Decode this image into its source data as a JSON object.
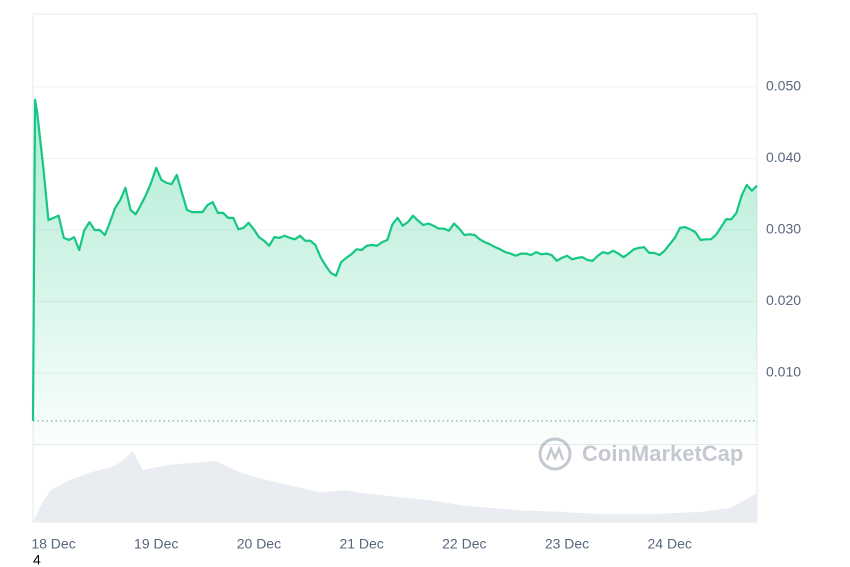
{
  "chart_data": {
    "type": "line",
    "watermark": "CoinMarketCap",
    "footnote": "4",
    "xlim": [
      -0.2,
      6.85
    ],
    "xticks": [
      {
        "value": 0,
        "label": "18 Dec"
      },
      {
        "value": 1,
        "label": "19 Dec"
      },
      {
        "value": 2,
        "label": "20 Dec"
      },
      {
        "value": 3,
        "label": "21 Dec"
      },
      {
        "value": 4,
        "label": "22 Dec"
      },
      {
        "value": 5,
        "label": "23 Dec"
      },
      {
        "value": 6,
        "label": "24 Dec"
      }
    ],
    "ylim": [
      0,
      0.06
    ],
    "yticks": [
      {
        "value": 0.01,
        "label": "0.010"
      },
      {
        "value": 0.02,
        "label": "0.020"
      },
      {
        "value": 0.03,
        "label": "0.030"
      },
      {
        "value": 0.04,
        "label": "0.040"
      },
      {
        "value": 0.05,
        "label": "0.050"
      }
    ],
    "y2lim": [
      0,
      100
    ],
    "grid": true,
    "baseline": 0.0033,
    "series": [
      {
        "color": "#16c784",
        "x": [
          -0.2,
          -0.18,
          -0.16,
          -0.1,
          -0.05,
          0,
          0.05,
          0.1,
          0.15,
          0.2,
          0.25,
          0.3,
          0.35,
          0.4,
          0.45,
          0.5,
          0.55,
          0.6,
          0.65,
          0.7,
          0.75,
          0.8,
          0.85,
          0.9,
          0.95,
          1,
          1.05,
          1.1,
          1.15,
          1.2,
          1.25,
          1.3,
          1.35,
          1.4,
          1.45,
          1.5,
          1.55,
          1.6,
          1.65,
          1.7,
          1.75,
          1.8,
          1.85,
          1.9,
          1.95,
          2,
          2.05,
          2.1,
          2.15,
          2.2,
          2.25,
          2.3,
          2.35,
          2.4,
          2.45,
          2.5,
          2.55,
          2.6,
          2.65,
          2.7,
          2.75,
          2.8,
          2.85,
          2.9,
          2.95,
          3,
          3.05,
          3.1,
          3.15,
          3.2,
          3.25,
          3.3,
          3.35,
          3.4,
          3.45,
          3.5,
          3.55,
          3.6,
          3.65,
          3.7,
          3.75,
          3.8,
          3.85,
          3.9,
          3.95,
          4,
          4.05,
          4.1,
          4.15,
          4.2,
          4.25,
          4.3,
          4.35,
          4.4,
          4.45,
          4.5,
          4.55,
          4.6,
          4.65,
          4.7,
          4.75,
          4.8,
          4.85,
          4.9,
          4.95,
          5,
          5.05,
          5.1,
          5.15,
          5.2,
          5.25,
          5.3,
          5.35,
          5.4,
          5.45,
          5.5,
          5.55,
          5.6,
          5.65,
          5.7,
          5.75,
          5.8,
          5.85,
          5.9,
          5.95,
          6,
          6.05,
          6.1,
          6.15,
          6.2,
          6.25,
          6.3,
          6.35,
          6.4,
          6.45,
          6.5,
          6.55,
          6.6,
          6.65,
          6.7,
          6.75,
          6.8,
          6.85
        ],
        "values": [
          0.0033,
          0.0482,
          0.0465,
          0.0388,
          0.0314,
          0.0317,
          0.032,
          0.0289,
          0.0286,
          0.029,
          0.0272,
          0.03,
          0.0311,
          0.03,
          0.03,
          0.0293,
          0.0311,
          0.0331,
          0.0342,
          0.0359,
          0.0328,
          0.0322,
          0.0335,
          0.0349,
          0.0366,
          0.0387,
          0.037,
          0.0366,
          0.0364,
          0.0377,
          0.0352,
          0.0328,
          0.0325,
          0.0325,
          0.0325,
          0.0335,
          0.0339,
          0.0324,
          0.0324,
          0.0317,
          0.0317,
          0.0301,
          0.0303,
          0.031,
          0.0301,
          0.029,
          0.0285,
          0.0278,
          0.029,
          0.0289,
          0.0292,
          0.0289,
          0.0287,
          0.0292,
          0.0285,
          0.0285,
          0.0279,
          0.0262,
          0.025,
          0.024,
          0.0236,
          0.0255,
          0.0261,
          0.0266,
          0.0273,
          0.0272,
          0.0278,
          0.0279,
          0.0278,
          0.0283,
          0.0286,
          0.0308,
          0.0317,
          0.0306,
          0.0311,
          0.032,
          0.0313,
          0.0307,
          0.0309,
          0.0306,
          0.0302,
          0.0302,
          0.0299,
          0.0309,
          0.0302,
          0.0293,
          0.0294,
          0.0293,
          0.0287,
          0.0283,
          0.028,
          0.0276,
          0.0273,
          0.0269,
          0.0267,
          0.0264,
          0.0267,
          0.0267,
          0.0265,
          0.0269,
          0.0266,
          0.0267,
          0.0265,
          0.0257,
          0.0261,
          0.0264,
          0.0259,
          0.0261,
          0.0262,
          0.0258,
          0.0257,
          0.0264,
          0.0269,
          0.0267,
          0.0271,
          0.0267,
          0.0262,
          0.0267,
          0.0273,
          0.0275,
          0.0276,
          0.0268,
          0.0268,
          0.0265,
          0.0271,
          0.028,
          0.0289,
          0.0303,
          0.0304,
          0.0301,
          0.0297,
          0.0286,
          0.0287,
          0.0287,
          0.0293,
          0.0304,
          0.0315,
          0.0315,
          0.0324,
          0.0348,
          0.0363,
          0.0355,
          0.0362
        ]
      },
      {
        "color": "#e9ecf0",
        "axis": "y2",
        "x": [
          -0.2,
          -0.12,
          -0.03,
          0.16,
          0.36,
          0.55,
          0.65,
          0.73,
          0.77,
          0.81,
          0.87,
          0.94,
          1.14,
          1.33,
          1.58,
          1.67,
          1.82,
          2.02,
          2.21,
          2.41,
          2.6,
          2.84,
          3.09,
          3.38,
          3.67,
          3.96,
          4.26,
          4.55,
          4.94,
          5.33,
          5.81,
          6.3,
          6.59,
          6.85
        ],
        "values": [
          0,
          21.8,
          41,
          54,
          64,
          70.5,
          77,
          86,
          92,
          82,
          67,
          69,
          74,
          76,
          79,
          73,
          64,
          56,
          50,
          44,
          38,
          41,
          36,
          32,
          28,
          22,
          18,
          15,
          13,
          10,
          10,
          13,
          18,
          37
        ]
      }
    ]
  }
}
